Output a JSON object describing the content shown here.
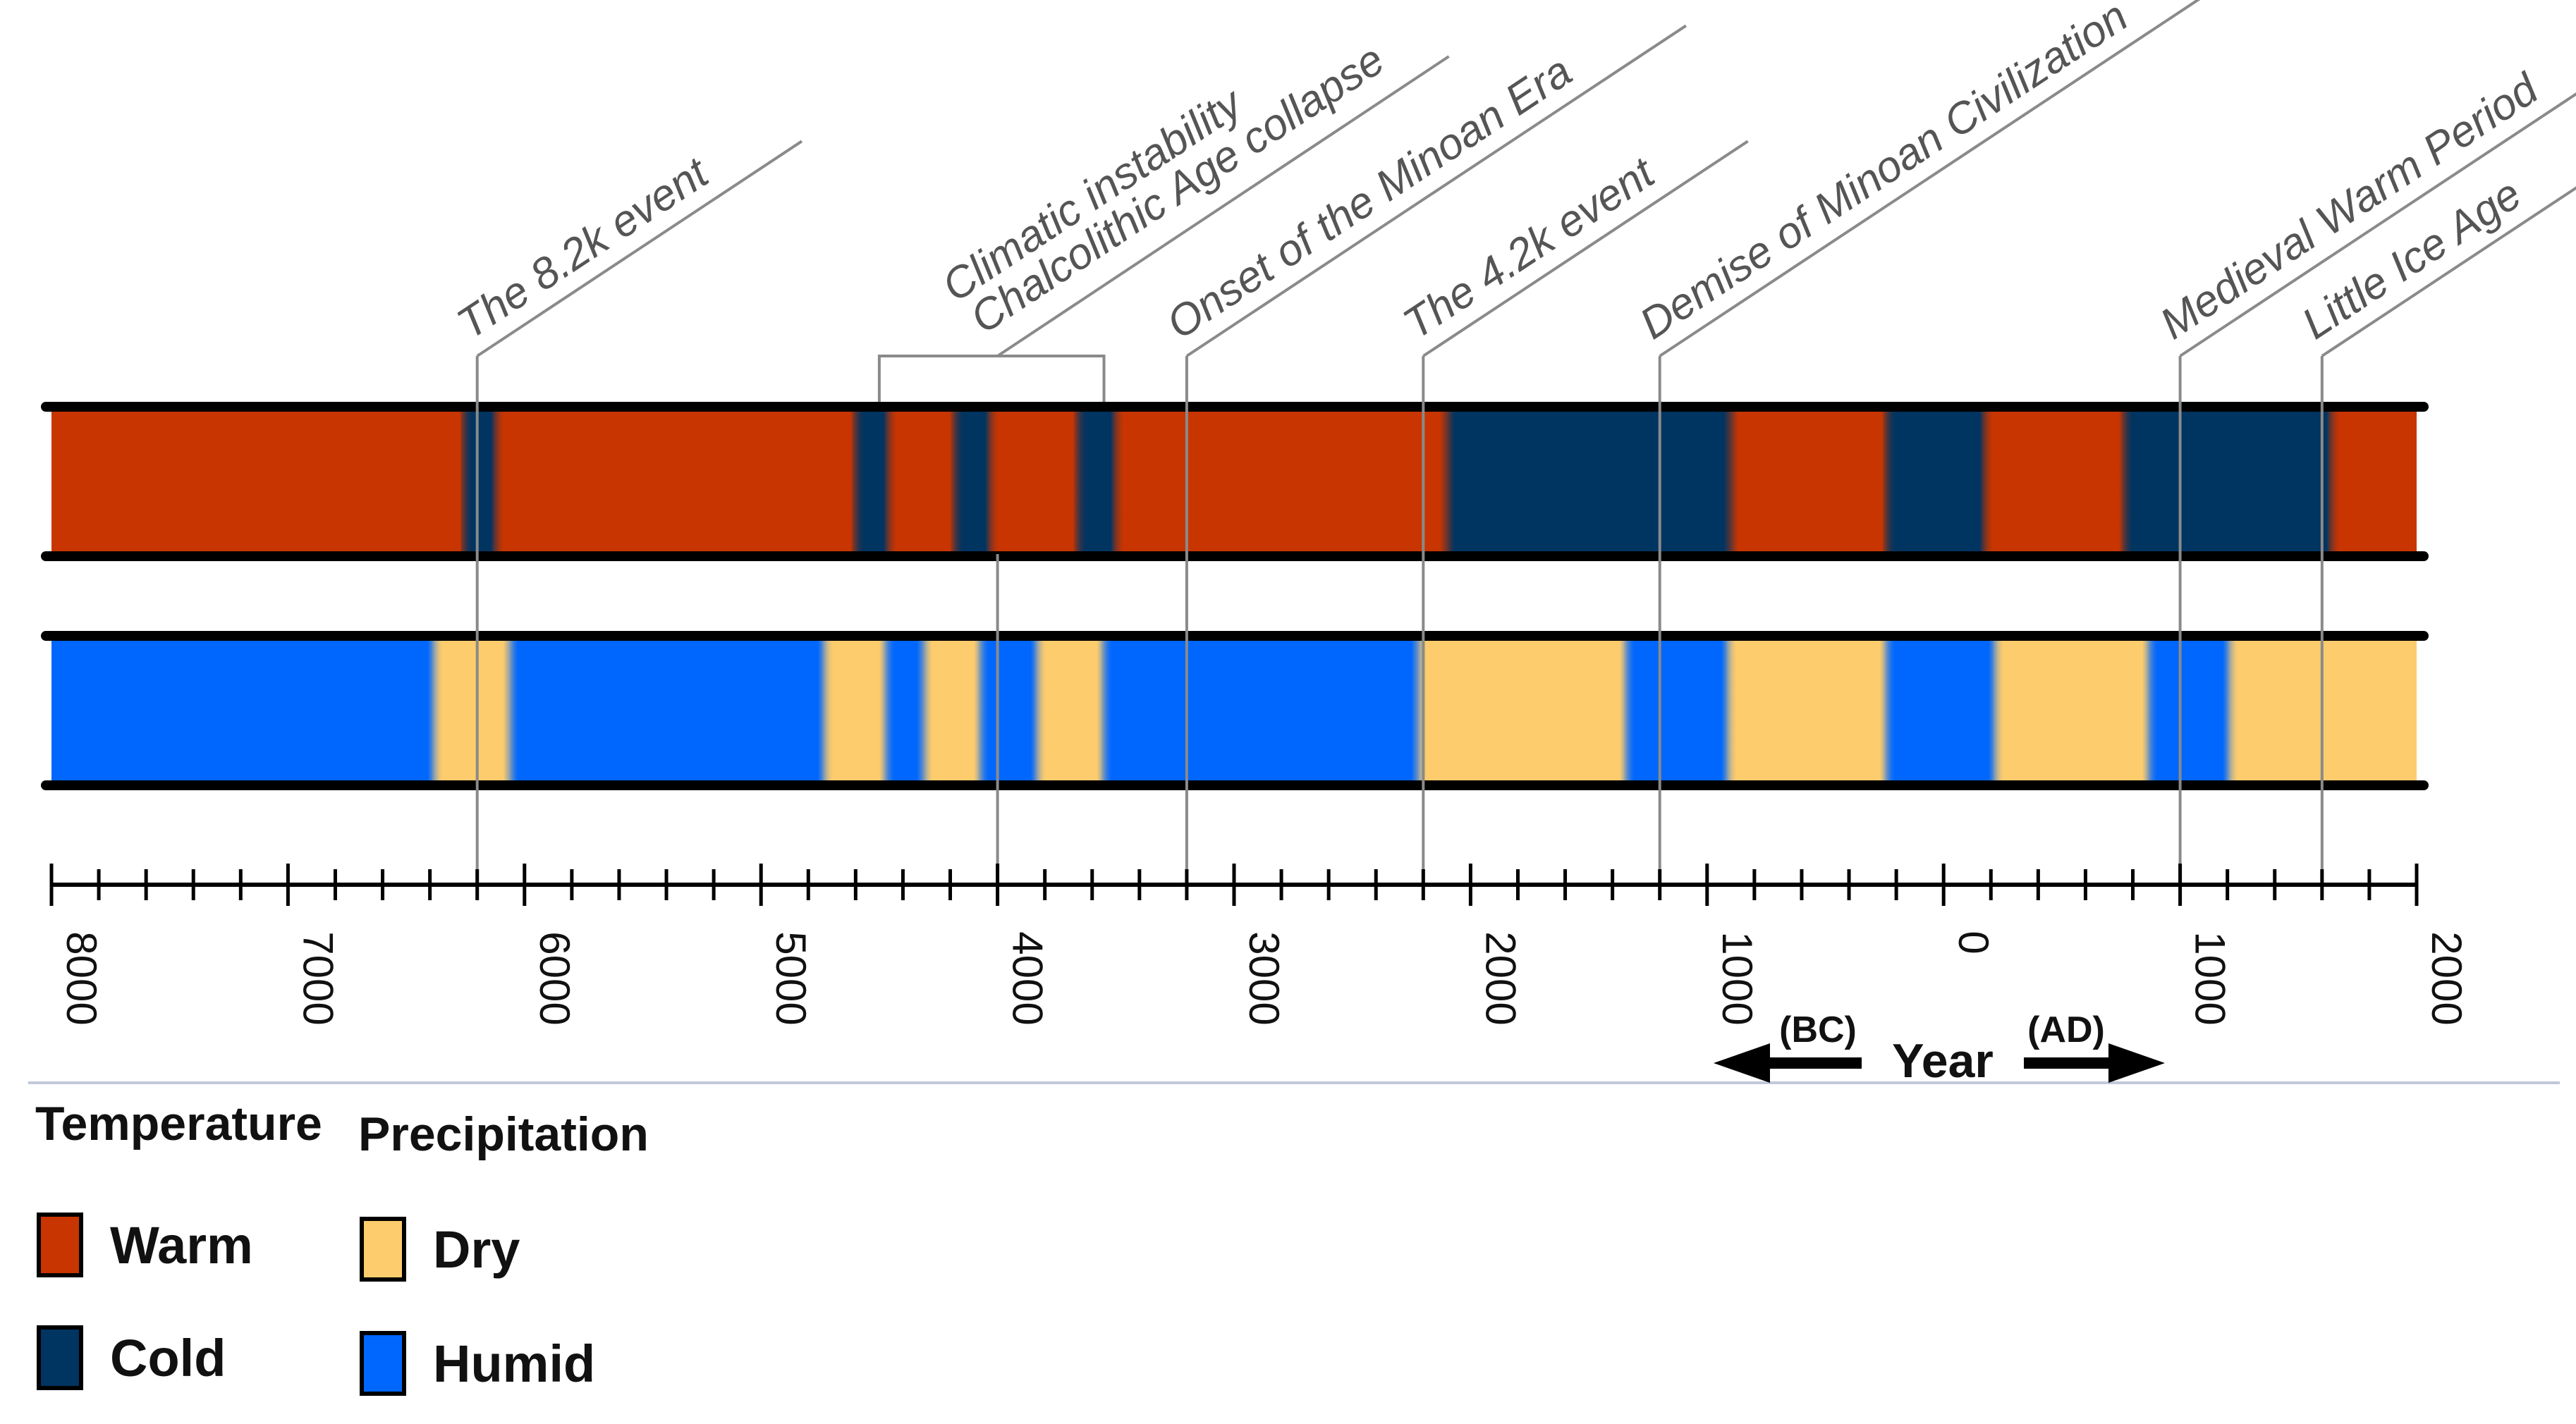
{
  "colors": {
    "warm": "#c93500",
    "cold": "#003461",
    "dry": "#fdcc6c",
    "humid": "#0067fe",
    "frame": "#000000",
    "leader": "#8a8a8a",
    "event_text": "#555555"
  },
  "axis": {
    "min": -8000,
    "max": 2000,
    "tick_step": 200,
    "tick_labels": [
      "8000",
      "7000",
      "6000",
      "5000",
      "4000",
      "3000",
      "2000",
      "1000",
      "0",
      "1000",
      "2000"
    ],
    "bc_label": "(BC)",
    "ad_label": "(AD)",
    "year_label": "Year"
  },
  "temperature_band": [
    {
      "type": "warm",
      "start": -8000,
      "end": -6220
    },
    {
      "type": "cold",
      "start": -6270,
      "end": -6080
    },
    {
      "type": "warm",
      "start": -6140,
      "end": -4560
    },
    {
      "type": "cold",
      "start": -4620,
      "end": -4420
    },
    {
      "type": "warm",
      "start": -4480,
      "end": -4140
    },
    {
      "type": "cold",
      "start": -4200,
      "end": -3990
    },
    {
      "type": "warm",
      "start": -4050,
      "end": -3620
    },
    {
      "type": "cold",
      "start": -3680,
      "end": -3460
    },
    {
      "type": "warm",
      "start": -3520,
      "end": -2030
    },
    {
      "type": "cold",
      "start": -2130,
      "end": -830
    },
    {
      "type": "warm",
      "start": -930,
      "end": -200
    },
    {
      "type": "cold",
      "start": -260,
      "end": 220
    },
    {
      "type": "warm",
      "start": 150,
      "end": 810
    },
    {
      "type": "cold",
      "start": 740,
      "end": 1680
    },
    {
      "type": "warm",
      "start": 1620,
      "end": 2000
    }
  ],
  "precipitation_band": [
    {
      "type": "humid",
      "start": -8000,
      "end": -6330
    },
    {
      "type": "dry",
      "start": -6410,
      "end": -6000
    },
    {
      "type": "humid",
      "start": -6090,
      "end": -4680
    },
    {
      "type": "dry",
      "start": -4760,
      "end": -4420
    },
    {
      "type": "humid",
      "start": -4500,
      "end": -4250
    },
    {
      "type": "dry",
      "start": -4340,
      "end": -4020
    },
    {
      "type": "humid",
      "start": -4100,
      "end": -3780
    },
    {
      "type": "dry",
      "start": -3860,
      "end": -3500
    },
    {
      "type": "humid",
      "start": -3580,
      "end": -2160
    },
    {
      "type": "dry",
      "start": -2250,
      "end": -1290
    },
    {
      "type": "humid",
      "start": -1370,
      "end": -860
    },
    {
      "type": "dry",
      "start": -940,
      "end": -190
    },
    {
      "type": "humid",
      "start": -270,
      "end": 270
    },
    {
      "type": "dry",
      "start": 190,
      "end": 920
    },
    {
      "type": "humid",
      "start": 840,
      "end": 1260
    },
    {
      "type": "dry",
      "start": 1180,
      "end": 2000
    }
  ],
  "events": [
    {
      "label": "The 8.2k event",
      "year": -6200
    },
    {
      "label": "Climatic instability",
      "year": -4000,
      "bracket_start": -4500,
      "bracket_end": -3550
    },
    {
      "label": "Chalcolithic Age collapse",
      "year": -4000
    },
    {
      "label": "Onset of the Minoan Era",
      "year": -3200
    },
    {
      "label": "The 4.2k event",
      "year": -2200
    },
    {
      "label": "Demise of Minoan Civilization",
      "year": -1200
    },
    {
      "label": "Medieval Warm Period",
      "year": 1000
    },
    {
      "label": "Little Ice Age",
      "year": 1600
    }
  ],
  "legend": {
    "temperature_title": "Temperature",
    "precipitation_title": "Precipitation",
    "warm": "Warm",
    "cold": "Cold",
    "dry": "Dry",
    "humid": "Humid"
  }
}
